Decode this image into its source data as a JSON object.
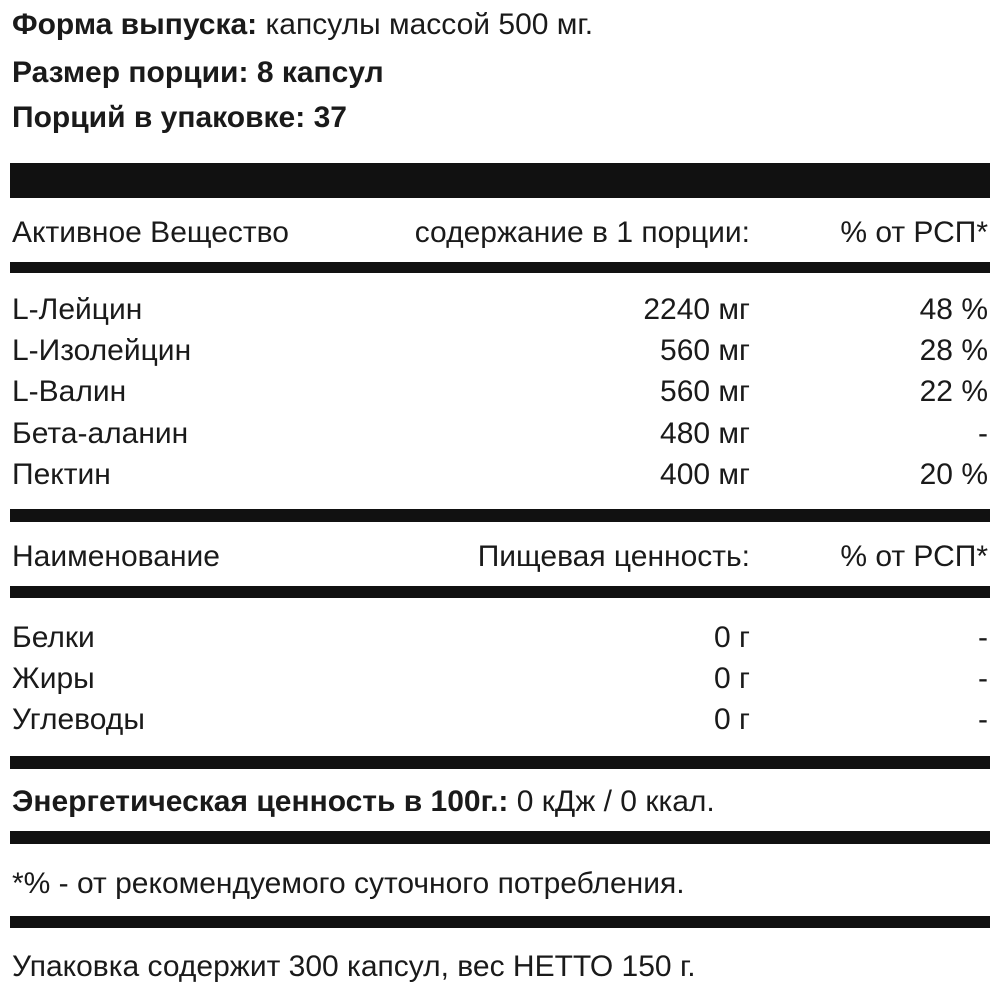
{
  "header": {
    "form_label": "Форма выпуска:",
    "form_value": "капсулы массой 500 мг.",
    "serving_label": "Размер порции:",
    "serving_value": "8 капсул",
    "servings_label": "Порций в упаковке:",
    "servings_value": "37"
  },
  "active": {
    "col_name": "Активное Вещество",
    "col_amount": "содержание в 1 порции:",
    "col_pct": "% от РСП*",
    "rows": [
      {
        "name": "L-Лейцин",
        "amount": "2240 мг",
        "pct": "48 %"
      },
      {
        "name": "L-Изолейцин",
        "amount": "560 мг",
        "pct": "28 %"
      },
      {
        "name": "L-Валин",
        "amount": "560 мг",
        "pct": "22 %"
      },
      {
        "name": "Бета-аланин",
        "amount": "480 мг",
        "pct": "-"
      },
      {
        "name": "Пектин",
        "amount": "400 мг",
        "pct": "20 %"
      }
    ]
  },
  "nutrition": {
    "col_name": "Наименование",
    "col_amount": "Пищевая ценность:",
    "col_pct": "% от РСП*",
    "rows": [
      {
        "name": "Белки",
        "amount": "0 г",
        "pct": "-"
      },
      {
        "name": "Жиры",
        "amount": "0 г",
        "pct": "-"
      },
      {
        "name": "Углеводы",
        "amount": "0 г",
        "pct": "-"
      }
    ]
  },
  "energy": {
    "label": "Энергетическая ценность в 100г.:",
    "value": "0 кДж / 0 ккал."
  },
  "footnote": "*% - от рекомендуемого суточного потребления.",
  "package": "Упаковка содержит 300 капсул, вес НЕТТО 150 г."
}
